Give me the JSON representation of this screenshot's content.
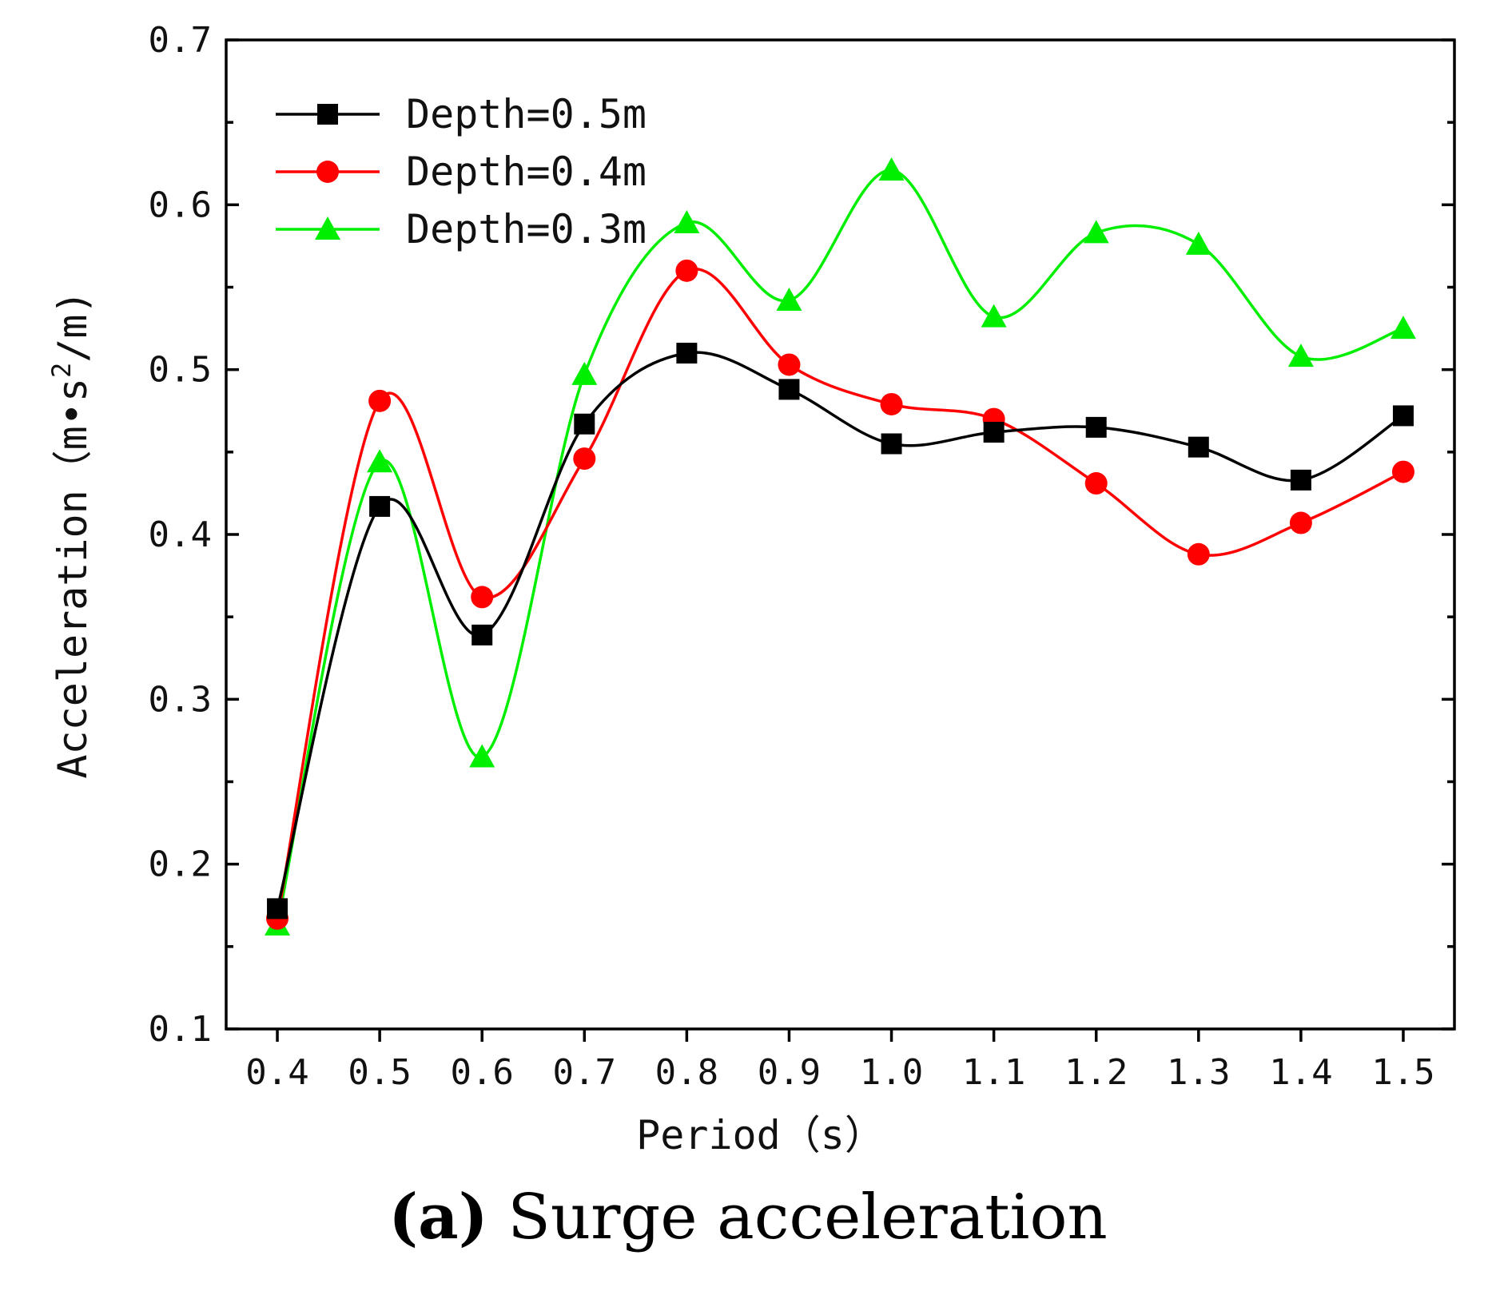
{
  "chart_data": {
    "type": "line",
    "xlabel": "Period (s)",
    "ylabel": "Acceleration (m•s²/m)",
    "ylabel_parts": {
      "pre": "Acceleration（m•s",
      "sup": "2",
      "post": "/m)"
    },
    "xlabel_display": "Period（s）",
    "categories": [
      "0.4",
      "0.5",
      "0.6",
      "0.7",
      "0.8",
      "0.9",
      "1.0",
      "1.1",
      "1.2",
      "1.3",
      "1.4",
      "1.5"
    ],
    "x": [
      0.4,
      0.5,
      0.6,
      0.7,
      0.8,
      0.9,
      1.0,
      1.1,
      1.2,
      1.3,
      1.4,
      1.5
    ],
    "xlim": [
      0.35,
      1.55
    ],
    "ylim": [
      0.1,
      0.7
    ],
    "yticks": [
      "0.1",
      "0.2",
      "0.3",
      "0.4",
      "0.5",
      "0.6",
      "0.7"
    ],
    "ytick_values": [
      0.1,
      0.2,
      0.3,
      0.4,
      0.5,
      0.6,
      0.7
    ],
    "grid": false,
    "legend_position": "top-left",
    "series": [
      {
        "name": "Depth=0.5m",
        "color": "#000000",
        "marker": "square",
        "values": [
          0.173,
          0.417,
          0.339,
          0.467,
          0.51,
          0.488,
          0.455,
          0.462,
          0.465,
          0.453,
          0.433,
          0.472
        ]
      },
      {
        "name": "Depth=0.4m",
        "color": "#ff0000",
        "marker": "circle",
        "values": [
          0.167,
          0.481,
          0.362,
          0.446,
          0.56,
          0.503,
          0.479,
          0.47,
          0.431,
          0.388,
          0.407,
          0.438
        ]
      },
      {
        "name": "Depth=0.3m",
        "color": "#00ee00",
        "marker": "triangle",
        "values": [
          0.163,
          0.444,
          0.265,
          0.497,
          0.589,
          0.542,
          0.621,
          0.532,
          0.583,
          0.576,
          0.508,
          0.525
        ]
      }
    ]
  },
  "caption": {
    "label": "(a)",
    "text": " Surge acceleration"
  }
}
